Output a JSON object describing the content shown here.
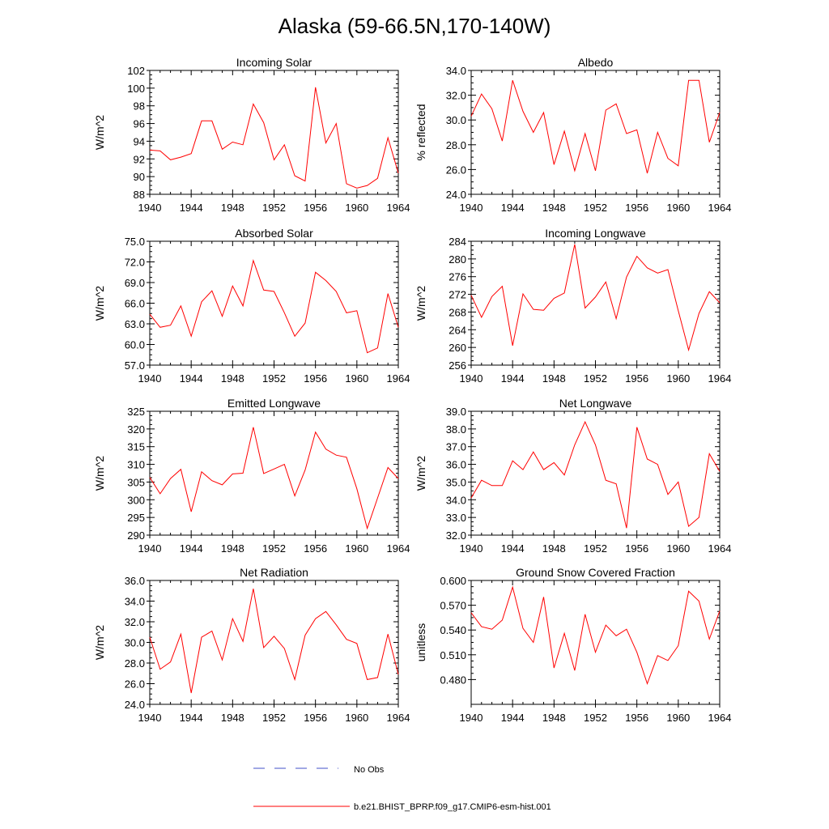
{
  "title": "Alaska (59-66.5N,170-140W)",
  "legend": {
    "obs_label": "No Obs",
    "obs_color": "#4050c8",
    "model_label": "b.e21.BHIST_BPRP.f09_g17.CMIP6-esm-hist.001",
    "model_color": "#ff0000"
  },
  "chart_data": [
    {
      "type": "line",
      "title": "Incoming Solar",
      "ylabel": "W/m^2",
      "xlim": [
        1940,
        1964
      ],
      "ylim": [
        88,
        102
      ],
      "xticks": [
        "1940",
        "1944",
        "1948",
        "1952",
        "1956",
        "1960",
        "1964"
      ],
      "yticks": [
        "88",
        "90",
        "92",
        "94",
        "96",
        "98",
        "100",
        "102"
      ],
      "x": [
        1940,
        1941,
        1942,
        1943,
        1944,
        1945,
        1946,
        1947,
        1948,
        1949,
        1950,
        1951,
        1952,
        1953,
        1954,
        1955,
        1956,
        1957,
        1958,
        1959,
        1960,
        1961,
        1962,
        1963,
        1964
      ],
      "values": [
        93.0,
        92.9,
        91.9,
        92.2,
        92.6,
        96.3,
        96.3,
        93.1,
        93.9,
        93.6,
        98.2,
        96.1,
        91.9,
        93.6,
        90.1,
        89.5,
        100.1,
        93.8,
        96.0,
        89.2,
        88.7,
        89.0,
        89.8,
        94.4,
        90.4
      ]
    },
    {
      "type": "line",
      "title": "Albedo",
      "ylabel": "% reflected",
      "xlim": [
        1940,
        1964
      ],
      "ylim": [
        24,
        34
      ],
      "xticks": [
        "1940",
        "1944",
        "1948",
        "1952",
        "1956",
        "1960",
        "1964"
      ],
      "yticks": [
        "24.0",
        "26.0",
        "28.0",
        "30.0",
        "32.0",
        "34.0"
      ],
      "x": [
        1940,
        1941,
        1942,
        1943,
        1944,
        1945,
        1946,
        1947,
        1948,
        1949,
        1950,
        1951,
        1952,
        1953,
        1954,
        1955,
        1956,
        1957,
        1958,
        1959,
        1960,
        1961,
        1962,
        1963,
        1964
      ],
      "values": [
        30.3,
        32.1,
        30.9,
        28.3,
        33.2,
        30.7,
        29.0,
        30.6,
        26.4,
        29.1,
        25.9,
        28.9,
        25.9,
        30.8,
        31.3,
        28.9,
        29.2,
        25.7,
        29.0,
        26.9,
        26.3,
        33.2,
        33.2,
        28.2,
        30.6
      ]
    },
    {
      "type": "line",
      "title": "Absorbed Solar",
      "ylabel": "W/m^2",
      "xlim": [
        1940,
        1964
      ],
      "ylim": [
        57,
        75
      ],
      "xticks": [
        "1940",
        "1944",
        "1948",
        "1952",
        "1956",
        "1960",
        "1964"
      ],
      "yticks": [
        "57.0",
        "60.0",
        "63.0",
        "66.0",
        "69.0",
        "72.0",
        "75.0"
      ],
      "x": [
        1940,
        1941,
        1942,
        1943,
        1944,
        1945,
        1946,
        1947,
        1948,
        1949,
        1950,
        1951,
        1952,
        1953,
        1954,
        1955,
        1956,
        1957,
        1958,
        1959,
        1960,
        1961,
        1962,
        1963,
        1964
      ],
      "values": [
        64.4,
        62.5,
        62.8,
        65.6,
        61.2,
        66.2,
        67.8,
        64.1,
        68.5,
        65.6,
        72.2,
        67.9,
        67.7,
        64.6,
        61.2,
        63.1,
        70.5,
        69.3,
        67.7,
        64.6,
        64.9,
        58.8,
        59.5,
        67.4,
        62.5
      ]
    },
    {
      "type": "line",
      "title": "Incoming Longwave",
      "ylabel": "W/m^2",
      "xlim": [
        1940,
        1964
      ],
      "ylim": [
        256,
        284
      ],
      "xticks": [
        "1940",
        "1944",
        "1948",
        "1952",
        "1956",
        "1960",
        "1964"
      ],
      "yticks": [
        "256",
        "260",
        "264",
        "268",
        "272",
        "276",
        "280",
        "284"
      ],
      "x": [
        1940,
        1941,
        1942,
        1943,
        1944,
        1945,
        1946,
        1947,
        1948,
        1949,
        1950,
        1951,
        1952,
        1953,
        1954,
        1955,
        1956,
        1957,
        1958,
        1959,
        1960,
        1961,
        1962,
        1963,
        1964
      ],
      "values": [
        271.8,
        266.8,
        271.5,
        273.8,
        260.4,
        272.1,
        268.6,
        268.4,
        271.1,
        272.3,
        283.3,
        268.9,
        271.4,
        274.8,
        266.5,
        275.9,
        280.6,
        278.0,
        276.8,
        277.6,
        268.3,
        259.4,
        267.7,
        272.6,
        270.1
      ]
    },
    {
      "type": "line",
      "title": "Emitted Longwave",
      "ylabel": "W/m^2",
      "xlim": [
        1940,
        1964
      ],
      "ylim": [
        290,
        325
      ],
      "xticks": [
        "1940",
        "1944",
        "1948",
        "1952",
        "1956",
        "1960",
        "1964"
      ],
      "yticks": [
        "290",
        "295",
        "300",
        "305",
        "310",
        "315",
        "320",
        "325"
      ],
      "x": [
        1940,
        1941,
        1942,
        1943,
        1944,
        1945,
        1946,
        1947,
        1948,
        1949,
        1950,
        1951,
        1952,
        1953,
        1954,
        1955,
        1956,
        1957,
        1958,
        1959,
        1960,
        1961,
        1962,
        1963,
        1964
      ],
      "values": [
        306.3,
        301.7,
        306.0,
        308.6,
        296.6,
        307.9,
        305.4,
        304.2,
        307.3,
        307.5,
        320.5,
        307.4,
        308.7,
        310.0,
        301.1,
        308.4,
        319.1,
        314.3,
        312.6,
        312.0,
        303.1,
        291.9,
        300.5,
        309.1,
        306.0
      ]
    },
    {
      "type": "line",
      "title": "Net Longwave",
      "ylabel": "W/m^2",
      "xlim": [
        1940,
        1964
      ],
      "ylim": [
        32,
        39
      ],
      "xticks": [
        "1940",
        "1944",
        "1948",
        "1952",
        "1956",
        "1960",
        "1964"
      ],
      "yticks": [
        "32.0",
        "33.0",
        "34.0",
        "35.0",
        "36.0",
        "37.0",
        "38.0",
        "39.0"
      ],
      "x": [
        1940,
        1941,
        1942,
        1943,
        1944,
        1945,
        1946,
        1947,
        1948,
        1949,
        1950,
        1951,
        1952,
        1953,
        1954,
        1955,
        1956,
        1957,
        1958,
        1959,
        1960,
        1961,
        1962,
        1963,
        1964
      ],
      "values": [
        34.1,
        35.1,
        34.8,
        34.8,
        36.2,
        35.7,
        36.7,
        35.7,
        36.1,
        35.4,
        37.1,
        38.4,
        37.1,
        35.1,
        34.9,
        32.4,
        38.1,
        36.3,
        36.0,
        34.3,
        35.0,
        32.5,
        33.0,
        36.6,
        35.6
      ]
    },
    {
      "type": "line",
      "title": "Net Radiation",
      "ylabel": "W/m^2",
      "xlim": [
        1940,
        1964
      ],
      "ylim": [
        24,
        36
      ],
      "xticks": [
        "1940",
        "1944",
        "1948",
        "1952",
        "1956",
        "1960",
        "1964"
      ],
      "yticks": [
        "24.0",
        "26.0",
        "28.0",
        "30.0",
        "32.0",
        "34.0",
        "36.0"
      ],
      "x": [
        1940,
        1941,
        1942,
        1943,
        1944,
        1945,
        1946,
        1947,
        1948,
        1949,
        1950,
        1951,
        1952,
        1953,
        1954,
        1955,
        1956,
        1957,
        1958,
        1959,
        1960,
        1961,
        1962,
        1963,
        1964
      ],
      "values": [
        30.5,
        27.4,
        28.1,
        30.8,
        25.1,
        30.5,
        31.1,
        28.3,
        32.3,
        30.1,
        35.2,
        29.5,
        30.6,
        29.4,
        26.4,
        30.7,
        32.3,
        33.0,
        31.7,
        30.3,
        29.9,
        26.4,
        26.6,
        30.8,
        26.9
      ]
    },
    {
      "type": "line",
      "title": "Ground Snow Covered Fraction",
      "ylabel": "unitless",
      "xlim": [
        1940,
        1964
      ],
      "ylim": [
        0.45,
        0.6
      ],
      "xticks": [
        "1940",
        "1944",
        "1948",
        "1952",
        "1956",
        "1960",
        "1964"
      ],
      "yticks": [
        "0.480",
        "0.510",
        "0.540",
        "0.570",
        "0.600"
      ],
      "x": [
        1940,
        1941,
        1942,
        1943,
        1944,
        1945,
        1946,
        1947,
        1948,
        1949,
        1950,
        1951,
        1952,
        1953,
        1954,
        1955,
        1956,
        1957,
        1958,
        1959,
        1960,
        1961,
        1962,
        1963,
        1964
      ],
      "values": [
        0.561,
        0.544,
        0.541,
        0.552,
        0.592,
        0.542,
        0.525,
        0.58,
        0.494,
        0.536,
        0.491,
        0.559,
        0.513,
        0.546,
        0.533,
        0.541,
        0.513,
        0.475,
        0.509,
        0.503,
        0.521,
        0.587,
        0.575,
        0.529,
        0.563
      ]
    }
  ]
}
